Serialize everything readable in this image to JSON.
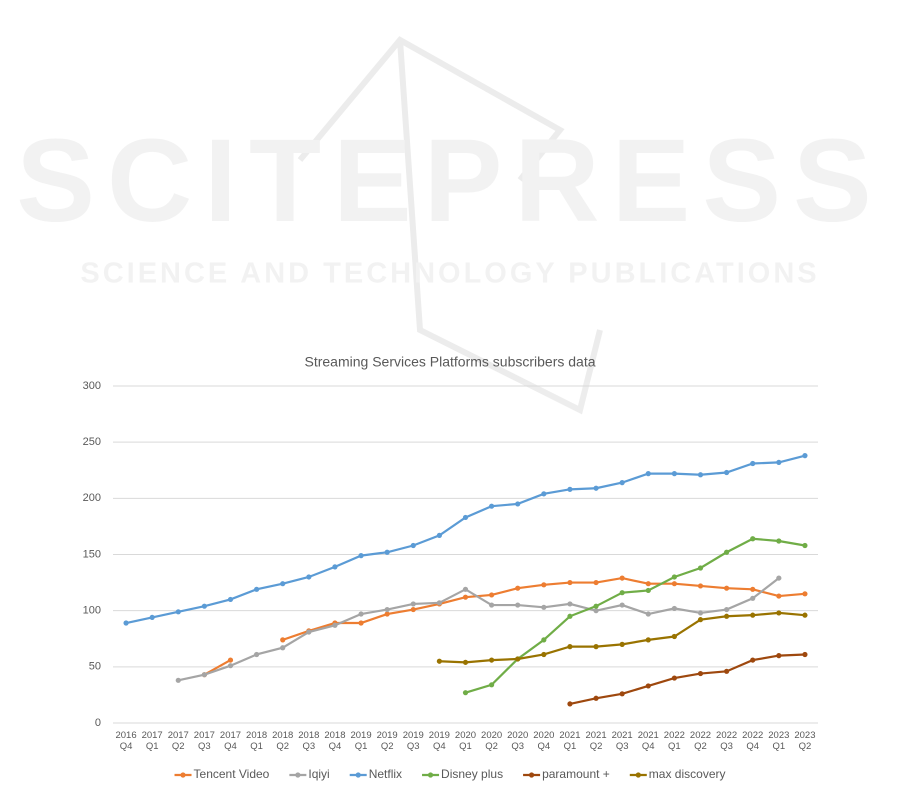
{
  "watermark": {
    "title": "SCITEPRESS",
    "subtitle": "SCIENCE AND TECHNOLOGY PUBLICATIONS"
  },
  "chart_data": {
    "type": "line",
    "title": "Streaming Services Platforms subscribers data",
    "categories": [
      "2016 Q4",
      "2017 Q1",
      "2017 Q2",
      "2017 Q3",
      "2017 Q4",
      "2018 Q1",
      "2018 Q2",
      "2018 Q3",
      "2018 Q4",
      "2019 Q1",
      "2019 Q2",
      "2019 Q3",
      "2019 Q4",
      "2020 Q1",
      "2020 Q2",
      "2020 Q3",
      "2020 Q4",
      "2021 Q1",
      "2021 Q2",
      "2021 Q3",
      "2021 Q4",
      "2022 Q1",
      "2022 Q2",
      "2022 Q3",
      "2022 Q4",
      "2023 Q1",
      "2023 Q2"
    ],
    "series": [
      {
        "name": "Tencent Video",
        "color": "#ed7d31",
        "values": [
          null,
          null,
          null,
          43,
          56,
          null,
          74,
          82,
          89,
          89,
          97,
          101,
          106,
          112,
          114,
          120,
          123,
          125,
          125,
          129,
          124,
          124,
          122,
          120,
          119,
          113,
          115
        ]
      },
      {
        "name": "Iqiyi",
        "color": "#a5a5a5",
        "values": [
          null,
          null,
          38,
          43,
          51,
          61,
          67,
          81,
          87,
          97,
          101,
          106,
          107,
          119,
          105,
          105,
          103,
          106,
          100,
          105,
          97,
          102,
          98,
          101,
          111,
          129,
          null
        ]
      },
      {
        "name": "Netflix",
        "color": "#5b9bd5",
        "values": [
          89,
          94,
          99,
          104,
          110,
          119,
          124,
          130,
          139,
          149,
          152,
          158,
          167,
          183,
          193,
          195,
          204,
          208,
          209,
          214,
          222,
          222,
          221,
          223,
          231,
          232,
          238
        ]
      },
      {
        "name": "Disney plus",
        "color": "#70ad47",
        "values": [
          null,
          null,
          null,
          null,
          null,
          null,
          null,
          null,
          null,
          null,
          null,
          null,
          null,
          27,
          34,
          57,
          74,
          95,
          104,
          116,
          118,
          130,
          138,
          152,
          164,
          162,
          158
        ]
      },
      {
        "name": "paramount +",
        "color": "#9e480e",
        "values": [
          null,
          null,
          null,
          null,
          null,
          null,
          null,
          null,
          null,
          null,
          null,
          null,
          null,
          null,
          null,
          null,
          null,
          17,
          22,
          26,
          33,
          40,
          44,
          46,
          56,
          60,
          61
        ]
      },
      {
        "name": "max discovery",
        "color": "#997300",
        "values": [
          null,
          null,
          null,
          null,
          null,
          null,
          null,
          null,
          null,
          null,
          null,
          null,
          55,
          54,
          56,
          57,
          61,
          68,
          68,
          70,
          74,
          77,
          92,
          95,
          96,
          98,
          96
        ]
      }
    ],
    "ylim": [
      0,
      300
    ],
    "yticks": [
      0,
      50,
      100,
      150,
      200,
      250,
      300
    ],
    "grid": true,
    "legend": "bottom"
  }
}
